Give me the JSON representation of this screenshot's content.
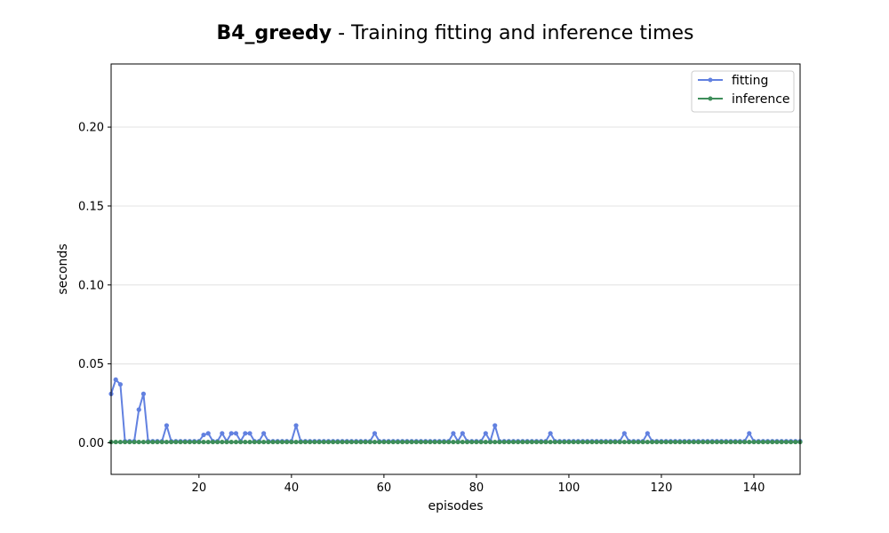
{
  "chart_data": {
    "type": "line",
    "title_bold": "B4_greedy",
    "title_rest": " - Training fitting and inference times",
    "xlabel": "episodes",
    "ylabel": "seconds",
    "xlim": [
      1,
      150
    ],
    "ylim": [
      -0.02,
      0.24
    ],
    "xticks": [
      20,
      40,
      60,
      80,
      100,
      120,
      140
    ],
    "yticks": [
      0.0,
      0.05,
      0.1,
      0.15,
      0.2
    ],
    "ytick_labels": [
      "0.00",
      "0.05",
      "0.10",
      "0.15",
      "0.20"
    ],
    "grid": "horizontal",
    "legend_position": "top-right",
    "series": [
      {
        "name": "fitting",
        "color": "#6281e0",
        "baseline": 0.001,
        "overrides": {
          "1": 0.031,
          "2": 0.04,
          "3": 0.037,
          "7": 0.021,
          "8": 0.031,
          "13": 0.011,
          "21": 0.005,
          "22": 0.006,
          "25": 0.006,
          "27": 0.006,
          "28": 0.006,
          "30": 0.006,
          "31": 0.006,
          "34": 0.006,
          "41": 0.011,
          "58": 0.006,
          "75": 0.006,
          "77": 0.006,
          "82": 0.006,
          "84": 0.011,
          "96": 0.006,
          "112": 0.006,
          "117": 0.006,
          "139": 0.006
        }
      },
      {
        "name": "inference",
        "color": "#3e8e5a",
        "baseline": 0.0005,
        "overrides": {}
      }
    ]
  }
}
